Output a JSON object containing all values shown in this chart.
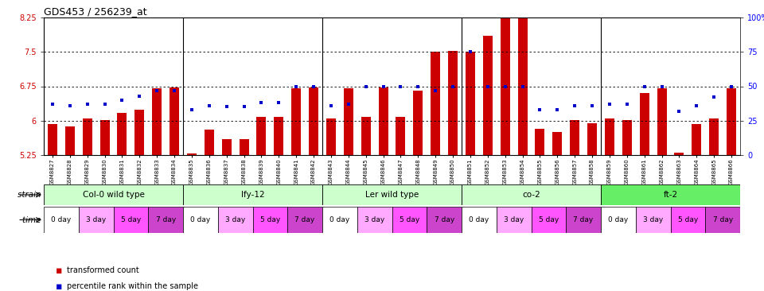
{
  "title": "GDS453 / 256239_at",
  "samples": [
    "GSM8827",
    "GSM8828",
    "GSM8829",
    "GSM8830",
    "GSM8831",
    "GSM8832",
    "GSM8833",
    "GSM8834",
    "GSM8835",
    "GSM8836",
    "GSM8837",
    "GSM8838",
    "GSM8839",
    "GSM8840",
    "GSM8841",
    "GSM8842",
    "GSM8843",
    "GSM8844",
    "GSM8845",
    "GSM8846",
    "GSM8847",
    "GSM8848",
    "GSM8849",
    "GSM8850",
    "GSM8851",
    "GSM8852",
    "GSM8853",
    "GSM8854",
    "GSM8855",
    "GSM8856",
    "GSM8857",
    "GSM8858",
    "GSM8859",
    "GSM8860",
    "GSM8861",
    "GSM8862",
    "GSM8863",
    "GSM8864",
    "GSM8865",
    "GSM8866"
  ],
  "bar_heights": [
    5.93,
    5.87,
    6.05,
    6.02,
    6.17,
    6.23,
    6.71,
    6.72,
    5.28,
    5.8,
    5.6,
    5.6,
    6.08,
    6.08,
    6.71,
    6.72,
    6.05,
    6.71,
    6.08,
    6.72,
    6.08,
    6.65,
    7.5,
    7.52,
    7.5,
    7.85,
    8.6,
    8.55,
    5.82,
    5.75,
    6.02,
    5.95,
    6.05,
    6.02,
    6.6,
    6.7,
    5.3,
    5.93,
    6.05,
    6.7
  ],
  "dot_pcts": [
    37,
    36,
    37,
    37,
    40,
    43,
    47,
    47,
    33,
    36,
    35,
    35,
    38,
    38,
    50,
    50,
    36,
    37,
    50,
    50,
    50,
    50,
    47,
    50,
    75,
    50,
    50,
    50,
    33,
    33,
    36,
    36,
    37,
    37,
    50,
    50,
    32,
    36,
    42,
    50
  ],
  "ylim": [
    5.25,
    8.25
  ],
  "yticks_left": [
    5.25,
    6.0,
    6.75,
    7.5,
    8.25
  ],
  "ytick_labels_left": [
    "5.25",
    "6",
    "6.75",
    "7.5",
    "8.25"
  ],
  "ytick_labels_right": [
    "0",
    "25",
    "50",
    "75",
    "100%"
  ],
  "hlines": [
    6.0,
    6.75,
    7.5
  ],
  "bar_color": "#cc0000",
  "dot_color": "#0000cc",
  "bar_bottom": 5.25,
  "strains": [
    {
      "label": "Col-0 wild type",
      "start": 0,
      "end": 8,
      "color": "#ccffcc"
    },
    {
      "label": "lfy-12",
      "start": 8,
      "end": 16,
      "color": "#ccffcc"
    },
    {
      "label": "Ler wild type",
      "start": 16,
      "end": 24,
      "color": "#ccffcc"
    },
    {
      "label": "co-2",
      "start": 24,
      "end": 32,
      "color": "#ccffcc"
    },
    {
      "label": "ft-2",
      "start": 32,
      "end": 40,
      "color": "#66ee66"
    }
  ],
  "time_labels": [
    "0 day",
    "3 day",
    "5 day",
    "7 day"
  ],
  "time_colors": [
    "#ffffff",
    "#ffaaff",
    "#ff55ff",
    "#cc44cc"
  ],
  "legend_items": [
    {
      "color": "#cc0000",
      "label": "transformed count"
    },
    {
      "color": "#0000cc",
      "label": "percentile rank within the sample"
    }
  ]
}
